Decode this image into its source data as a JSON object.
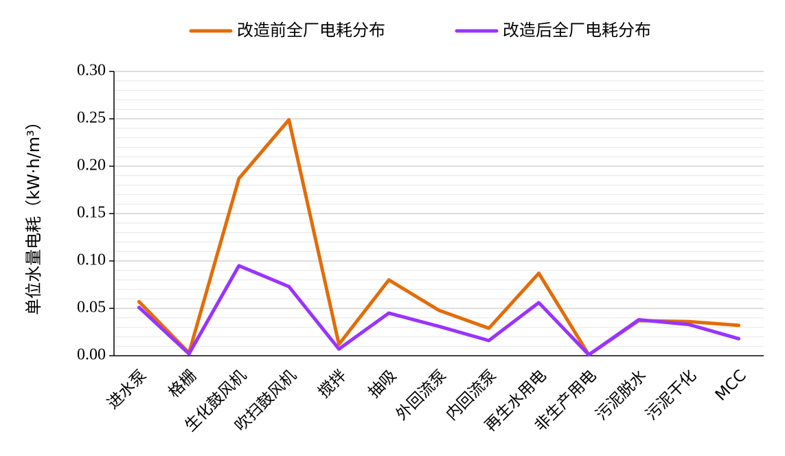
{
  "chart_data": {
    "type": "line",
    "title": "",
    "xlabel": "",
    "ylabel": "单位水量电耗（kW·h/m³）",
    "ylim": [
      0,
      0.3
    ],
    "y_ticks": [
      "0.00",
      "0.05",
      "0.10",
      "0.15",
      "0.20",
      "0.25",
      "0.30"
    ],
    "y_tick_values": [
      0,
      0.05,
      0.1,
      0.15,
      0.2,
      0.25,
      0.3
    ],
    "minor_grid_step": 0.01,
    "grid": true,
    "legend_position": "top",
    "categories": [
      "进水泵",
      "格栅",
      "生化鼓风机",
      "吹扫鼓风机",
      "搅拌",
      "抽吸",
      "外回流泵",
      "内回流泵",
      "再生水用电",
      "非生产用电",
      "污泥脱水",
      "污泥干化",
      "MCC"
    ],
    "series": [
      {
        "name": "改造前全厂电耗分布",
        "color": "#E36C09",
        "values": [
          0.057,
          0.003,
          0.187,
          0.249,
          0.012,
          0.08,
          0.048,
          0.029,
          0.087,
          0.001,
          0.037,
          0.036,
          0.032
        ]
      },
      {
        "name": "改造后全厂电耗分布",
        "color": "#9933FF",
        "values": [
          0.051,
          0.002,
          0.095,
          0.073,
          0.007,
          0.045,
          0.031,
          0.016,
          0.056,
          0.001,
          0.038,
          0.033,
          0.018
        ]
      }
    ]
  }
}
